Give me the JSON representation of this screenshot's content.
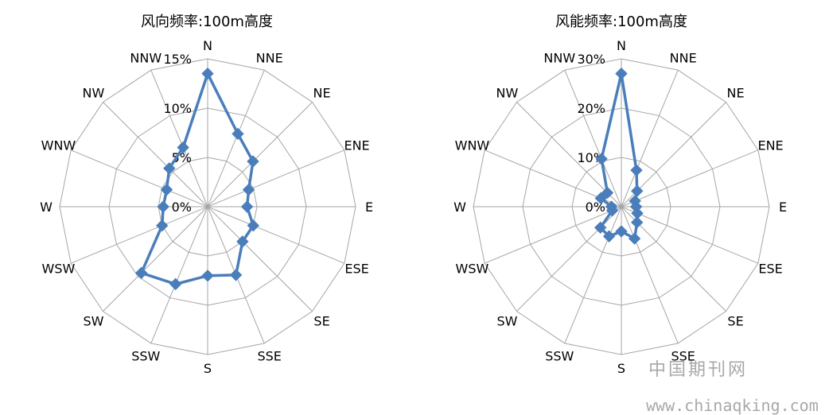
{
  "chart_data": [
    {
      "type": "radar",
      "title": "风向频率:100m高度",
      "categories": [
        "N",
        "NNE",
        "NE",
        "ENE",
        "E",
        "ESE",
        "SE",
        "SSE",
        "S",
        "SSW",
        "SW",
        "WSW",
        "W",
        "WNW",
        "NW",
        "NNW"
      ],
      "tick_labels": [
        "0%",
        "5%",
        "10%",
        "15%"
      ],
      "rlim": [
        0,
        15
      ],
      "series": [
        {
          "values": [
            13.5,
            8.0,
            6.5,
            4.5,
            4.0,
            5.0,
            5.0,
            7.5,
            7.0,
            8.5,
            9.5,
            5.0,
            4.5,
            4.5,
            5.5,
            6.5
          ]
        }
      ],
      "series_color": "#4a7ebb",
      "grid_color": "#a6a6a6"
    },
    {
      "type": "radar",
      "title": "风能频率:100m高度",
      "categories": [
        "N",
        "NNE",
        "NE",
        "ENE",
        "E",
        "ESE",
        "SE",
        "SSE",
        "S",
        "SSW",
        "SW",
        "WSW",
        "W",
        "WNW",
        "NW",
        "NNW"
      ],
      "tick_labels": [
        "0%",
        "10%",
        "20%",
        "30%"
      ],
      "rlim": [
        0,
        30
      ],
      "series": [
        {
          "values": [
            27.0,
            8.0,
            4.5,
            3.0,
            3.0,
            3.5,
            4.5,
            7.0,
            5.0,
            6.5,
            6.0,
            2.0,
            2.0,
            4.5,
            4.0,
            10.5
          ]
        }
      ],
      "series_color": "#4a7ebb",
      "grid_color": "#a6a6a6"
    }
  ],
  "watermark": {
    "line1": "中国期刊网",
    "line2": "www.chinaqking.com"
  }
}
